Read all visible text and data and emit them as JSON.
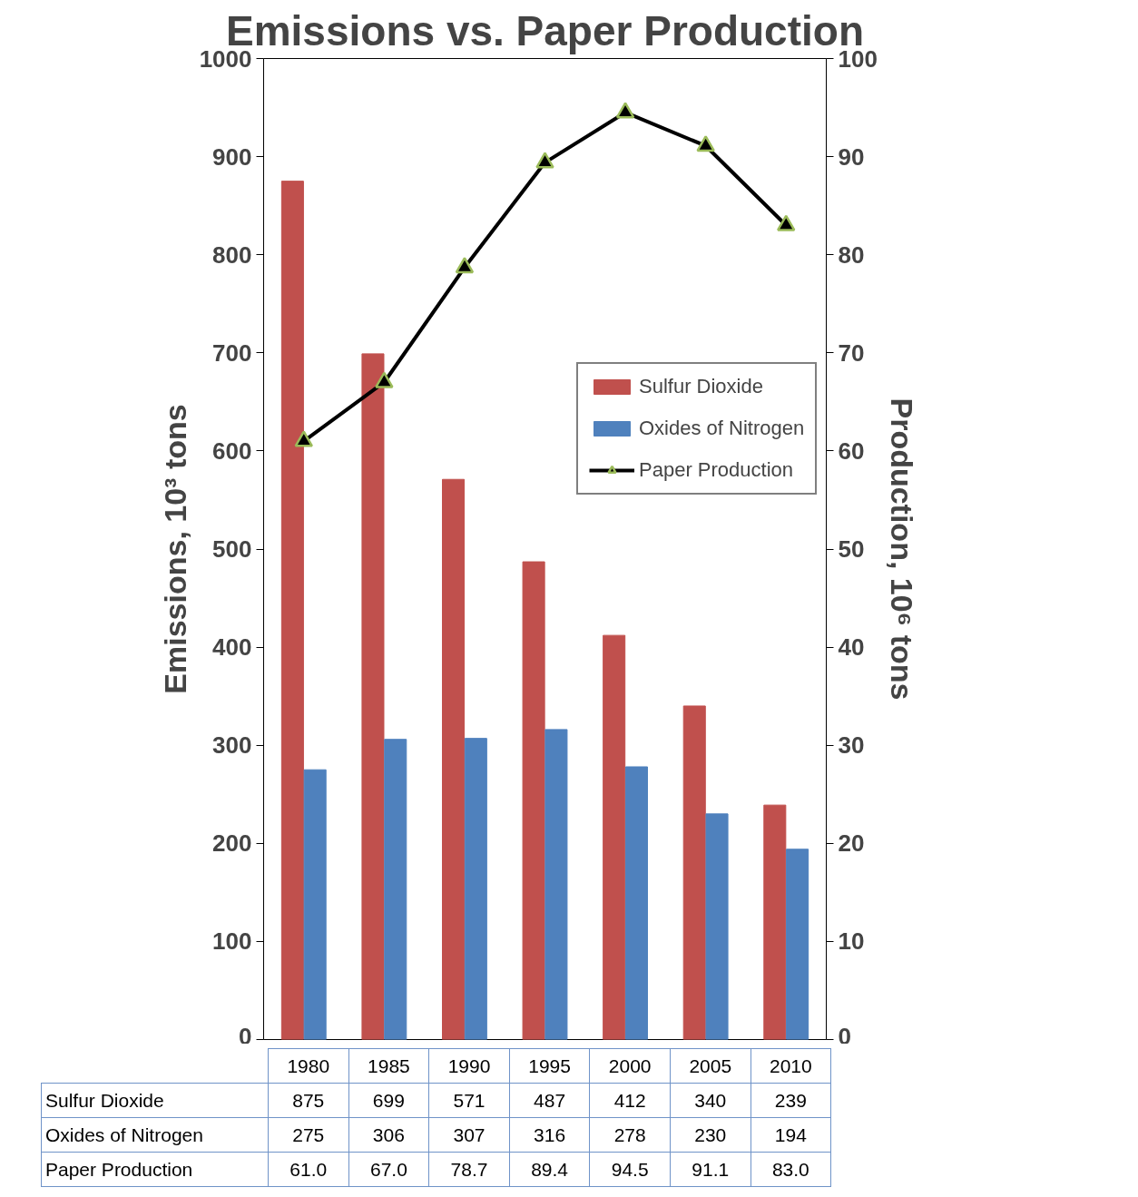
{
  "chart_data": {
    "type": "bar",
    "title": "Emissions vs. Paper Production",
    "xlabel": null,
    "ylabel": "Emissions, 10³ tons",
    "y2label": "Production, 10⁶ tons",
    "categories": [
      "1980",
      "1985",
      "1990",
      "1995",
      "2000",
      "2005",
      "2010"
    ],
    "series": [
      {
        "name": "Sulfur Dioxide",
        "color": "#c0504d",
        "values": [
          875,
          699,
          571,
          487,
          412,
          340,
          239
        ],
        "value_labels": [
          "875",
          "699",
          "571",
          "487",
          "412",
          "340",
          "239"
        ]
      },
      {
        "name": "Oxides of Nitrogen",
        "color": "#4f81bd",
        "values": [
          275,
          306,
          307,
          316,
          278,
          230,
          194
        ],
        "value_labels": [
          "275",
          "306",
          "307",
          "316",
          "278",
          "230",
          "194"
        ]
      },
      {
        "name": "Paper Production",
        "type": "line",
        "axis": "y2",
        "color": "#000000",
        "marker": "triangle",
        "values": [
          61.0,
          67.0,
          78.7,
          89.4,
          94.5,
          91.1,
          83.0
        ],
        "value_labels": [
          "61.0",
          "67.0",
          "78.7",
          "89.4",
          "94.5",
          "91.1",
          "83.0"
        ]
      }
    ],
    "ylim": [
      0,
      1000
    ],
    "yticks": [
      0,
      100,
      200,
      300,
      400,
      500,
      600,
      700,
      800,
      900,
      1000
    ],
    "y2lim": [
      0,
      100
    ],
    "y2ticks": [
      0,
      10,
      20,
      30,
      40,
      50,
      60,
      70,
      80,
      90,
      100
    ],
    "grid": false,
    "legend": "right"
  }
}
